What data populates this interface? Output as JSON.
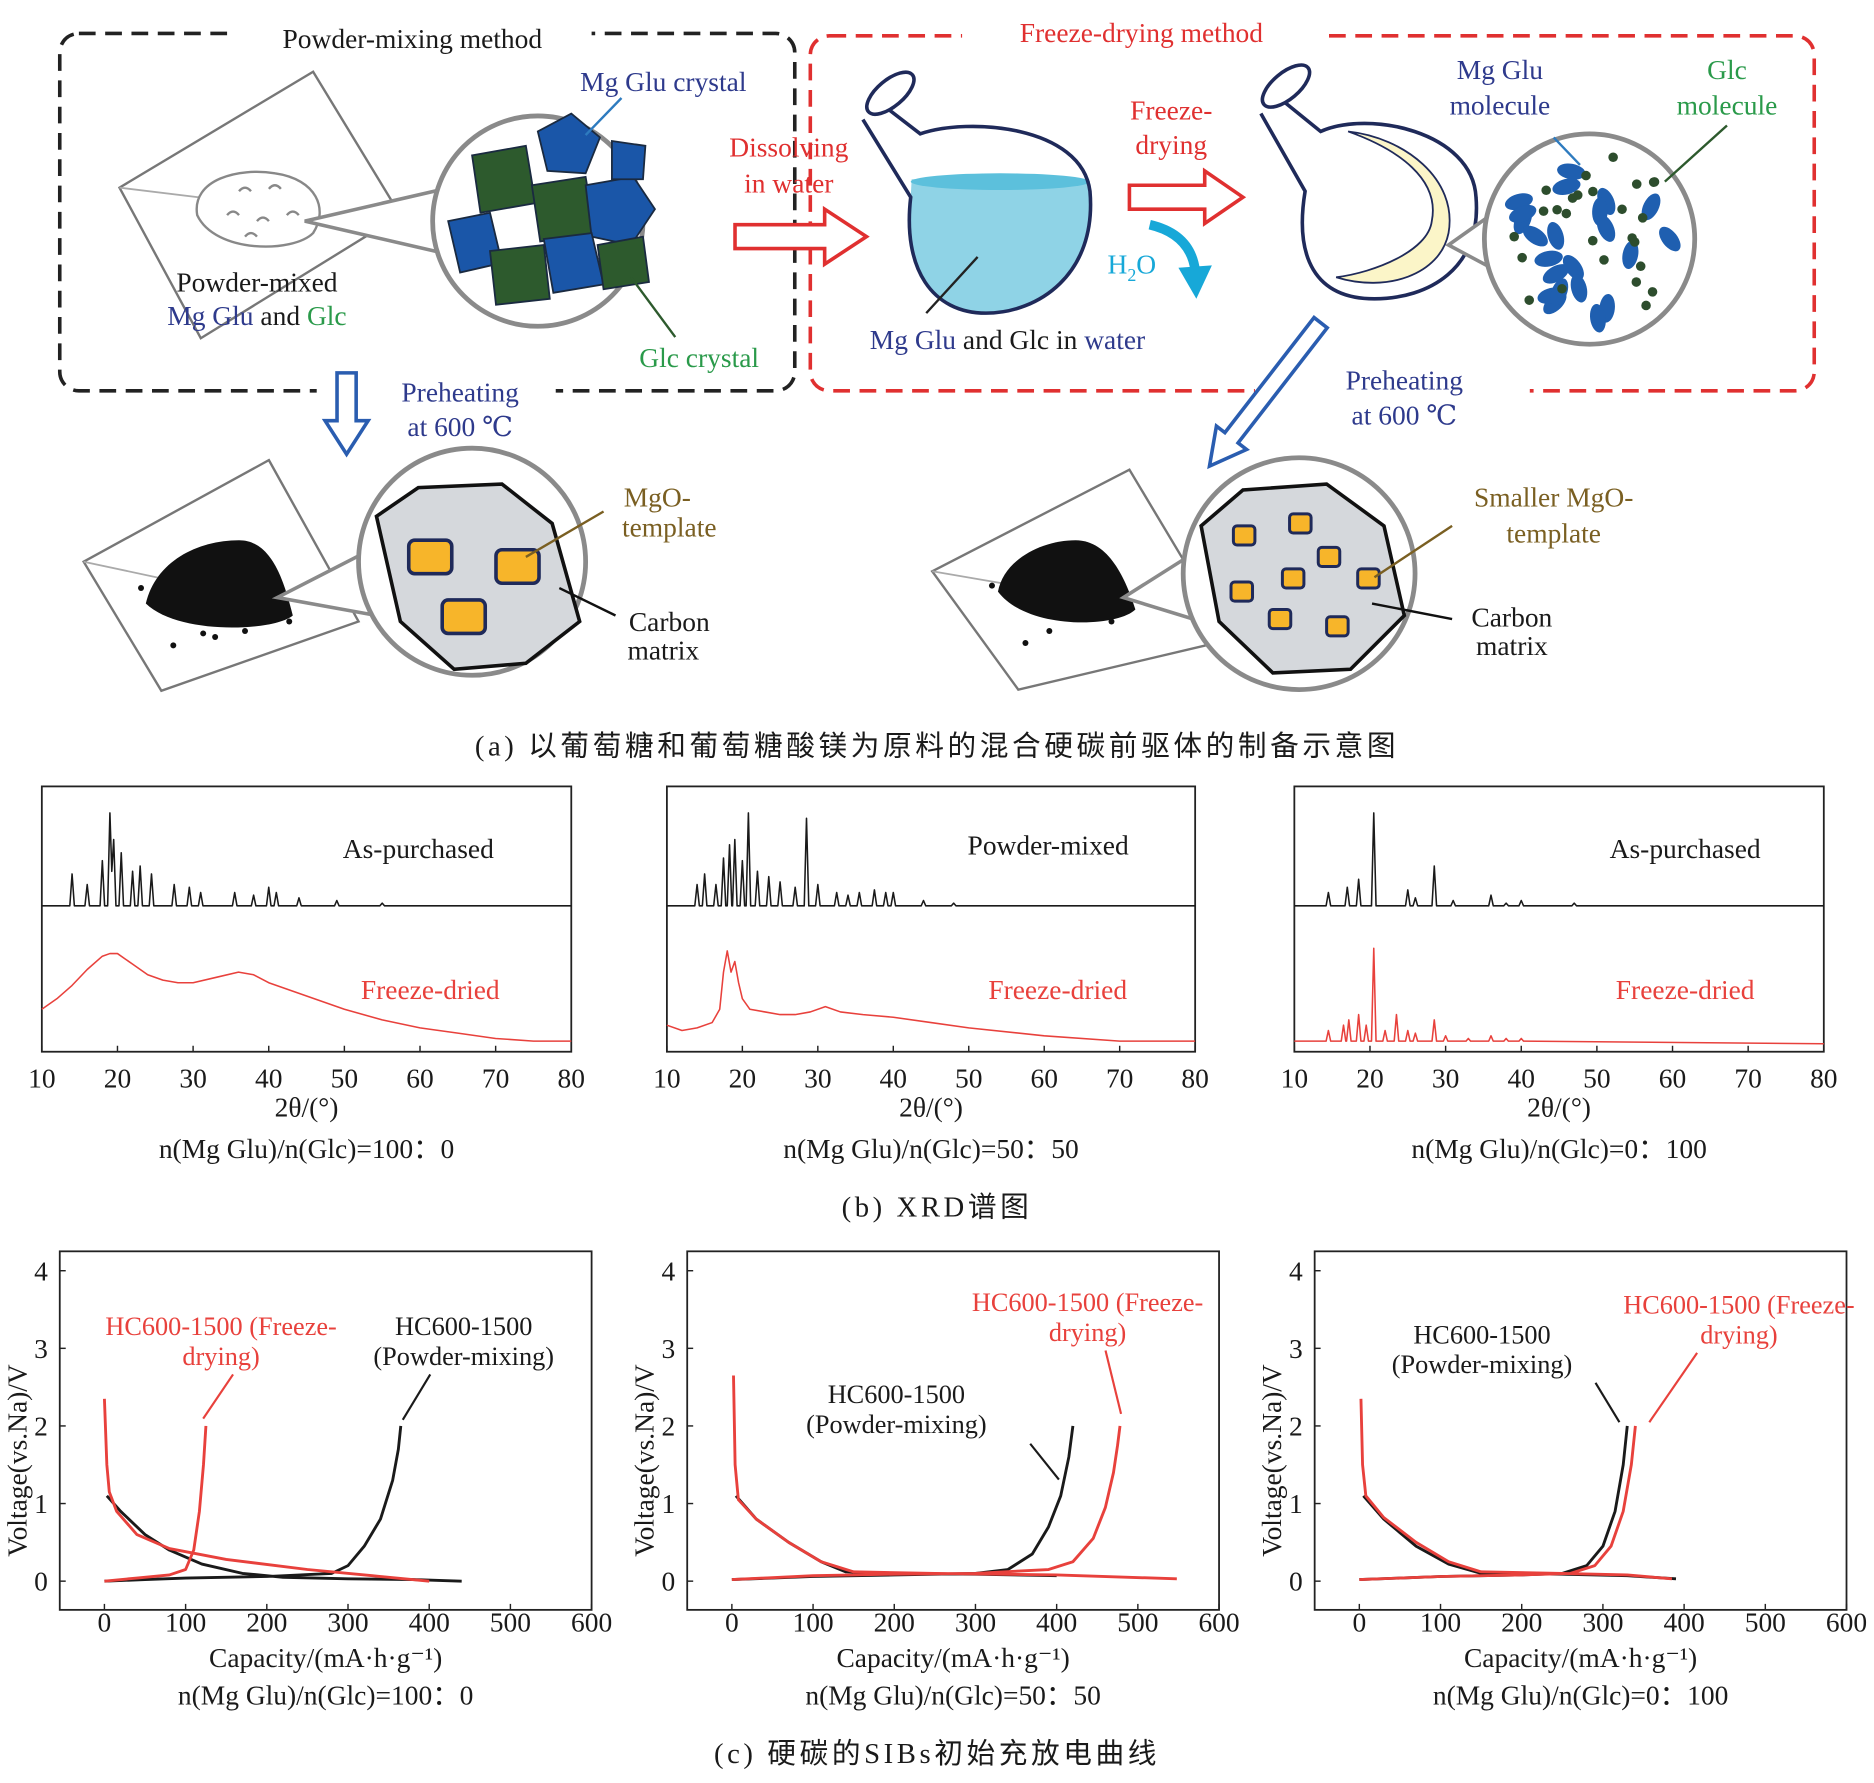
{
  "diagram": {
    "powder_title": "Powder-mixing method",
    "freeze_title": "Freeze-drying method",
    "mg_glu_crystal": "Mg Glu crystal",
    "glc_crystal": "Glc crystal",
    "powder_mixed": [
      "Powder-mixed",
      "Mg Glu",
      "and",
      "Glc"
    ],
    "dissolving": [
      "Dissolving",
      "in water"
    ],
    "solution": [
      "Mg Glu",
      "and Glc in",
      "water"
    ],
    "freeze_drying": [
      "Freeze-",
      "drying"
    ],
    "water": [
      "H",
      "2",
      "O"
    ],
    "mg_glu_molecule": [
      "Mg Glu",
      "molecule"
    ],
    "glc_molecule": [
      "Glc",
      "molecule"
    ],
    "preheating_left": [
      "Preheating",
      "at 600 ℃"
    ],
    "preheating_right": [
      "Preheating",
      "at 600 ℃"
    ],
    "mgo_template": [
      "MgO-",
      "template"
    ],
    "carbon_matrix_left": [
      "Carbon",
      "matrix"
    ],
    "smaller_mgo_template": [
      "Smaller MgO-",
      "template"
    ],
    "carbon_matrix_right": [
      "Carbon",
      "matrix"
    ]
  },
  "captions": {
    "a": "(a) 以葡萄糖和葡萄糖酸镁为原料的混合硬碳前驱体的制备示意图",
    "b": "(b) XRD谱图",
    "c": "(c) 硬碳的SIBs初始充放电曲线"
  },
  "chart_data": [
    {
      "type": "line",
      "subtitle": "n(Mg Glu)/n(Glc)=100：0",
      "xlabel": "2θ/(°)",
      "xlim": [
        10,
        80
      ],
      "xticks": [
        10,
        20,
        30,
        40,
        50,
        60,
        70,
        80
      ],
      "ylim": [
        0,
        100
      ],
      "series": [
        {
          "name": "As-purchased",
          "color": "#1a1a1a",
          "x": [
            10,
            13.7,
            14,
            14.3,
            15.7,
            16,
            16.3,
            17.7,
            18,
            18.3,
            18.7,
            19,
            19.25,
            19.5,
            19.8,
            20.2,
            20.5,
            20.8,
            21.7,
            22,
            22.3,
            22.7,
            23,
            23.3,
            24.2,
            24.5,
            24.8,
            27.2,
            27.5,
            27.8,
            29.2,
            29.5,
            29.8,
            30.7,
            31,
            31.3,
            35.2,
            35.5,
            35.8,
            37.7,
            38,
            38.3,
            39.7,
            40,
            40.3,
            40.7,
            41,
            41.3,
            43.7,
            44,
            44.3,
            48.7,
            49,
            49.3,
            54.7,
            55,
            55.3,
            80
          ],
          "values": [
            55,
            55,
            67,
            55,
            55,
            63,
            55,
            55,
            72,
            55,
            55,
            90,
            68,
            80,
            55,
            55,
            75,
            55,
            55,
            68,
            55,
            55,
            70,
            55,
            55,
            67,
            55,
            55,
            63,
            55,
            55,
            62,
            55,
            55,
            60,
            55,
            55,
            60,
            55,
            55,
            59,
            55,
            55,
            62,
            55,
            55,
            60,
            55,
            55,
            58,
            55,
            55,
            57,
            55,
            55,
            56,
            55,
            55
          ]
        },
        {
          "name": "Freeze-dried",
          "color": "#e8413c",
          "x": [
            10,
            12,
            14,
            16,
            18,
            19,
            20,
            21,
            22,
            24,
            26,
            28,
            30,
            33,
            36,
            38,
            40,
            45,
            50,
            55,
            60,
            65,
            70,
            75,
            80
          ],
          "values": [
            16,
            20,
            25,
            31,
            36,
            37,
            37,
            35,
            33,
            29,
            27,
            26,
            26,
            28,
            30,
            29,
            26,
            21,
            16,
            12,
            9,
            7,
            5,
            4,
            4
          ]
        }
      ]
    },
    {
      "type": "line",
      "subtitle": "n(Mg Glu)/n(Glc)=50：50",
      "xlabel": "2θ/(°)",
      "xlim": [
        10,
        80
      ],
      "xticks": [
        10,
        20,
        30,
        40,
        50,
        60,
        70,
        80
      ],
      "ylim": [
        0,
        100
      ],
      "series": [
        {
          "name": "Powder-mixed",
          "color": "#1a1a1a",
          "x": [
            10,
            13.7,
            14,
            14.3,
            14.7,
            15,
            15.3,
            16.2,
            16.5,
            16.8,
            17.2,
            17.5,
            17.8,
            18,
            18.3,
            18.6,
            18.7,
            19,
            19.3,
            19.7,
            20,
            20.3,
            20.5,
            20.8,
            21.1,
            21.7,
            22,
            22.3,
            23.2,
            23.5,
            23.8,
            24.7,
            25,
            25.3,
            26.7,
            27,
            27.3,
            28.2,
            28.5,
            28.8,
            29.7,
            30,
            30.3,
            32.2,
            32.5,
            32.8,
            33.7,
            34,
            34.3,
            35.2,
            35.5,
            35.8,
            37.2,
            37.5,
            37.8,
            38.7,
            39,
            39.3,
            39.7,
            40,
            40.3,
            43.7,
            44,
            44.3,
            47.7,
            48,
            48.3,
            80
          ],
          "values": [
            55,
            55,
            63,
            55,
            55,
            67,
            55,
            55,
            63,
            55,
            55,
            73,
            55,
            55,
            78,
            55,
            55,
            80,
            55,
            55,
            72,
            55,
            55,
            90,
            55,
            55,
            68,
            55,
            55,
            66,
            55,
            55,
            64,
            55,
            55,
            62,
            55,
            55,
            88,
            55,
            55,
            63,
            55,
            55,
            60,
            55,
            55,
            59,
            55,
            55,
            60,
            55,
            55,
            61,
            55,
            55,
            60,
            55,
            55,
            60,
            55,
            55,
            57,
            55,
            55,
            56,
            55,
            55
          ]
        },
        {
          "name": "Freeze-dried",
          "color": "#e8413c",
          "x": [
            10,
            12,
            14,
            16,
            17,
            17.5,
            18,
            18.5,
            19,
            19.5,
            20,
            21,
            23,
            25,
            27,
            29,
            31,
            33,
            36,
            40,
            45,
            50,
            60,
            70,
            80
          ],
          "values": [
            10,
            8,
            9,
            11,
            16,
            30,
            38,
            30,
            34,
            26,
            20,
            16,
            15,
            14,
            14,
            15,
            17,
            15,
            14,
            13,
            11,
            9,
            6,
            4,
            4
          ]
        }
      ]
    },
    {
      "type": "line",
      "subtitle": "n(Mg Glu)/n(Glc)=0：100",
      "xlabel": "2θ/(°)",
      "xlim": [
        10,
        80
      ],
      "xticks": [
        10,
        20,
        30,
        40,
        50,
        60,
        70,
        80
      ],
      "ylim": [
        0,
        100
      ],
      "series": [
        {
          "name": "As-purchased",
          "color": "#1a1a1a",
          "x": [
            10,
            14.2,
            14.5,
            14.8,
            16.7,
            17,
            17.3,
            18.2,
            18.5,
            18.8,
            20.2,
            20.5,
            20.8,
            24.7,
            25,
            25.3,
            25.7,
            26,
            26.3,
            28.2,
            28.5,
            28.8,
            30.7,
            31,
            31.3,
            35.7,
            36,
            36.3,
            37.7,
            38,
            38.3,
            39.7,
            40,
            40.3,
            46.7,
            47,
            47.3,
            80
          ],
          "values": [
            55,
            55,
            60,
            55,
            55,
            62,
            55,
            55,
            65,
            55,
            55,
            90,
            55,
            55,
            61,
            55,
            55,
            58,
            55,
            55,
            70,
            55,
            55,
            57,
            55,
            55,
            59,
            55,
            55,
            56,
            55,
            55,
            57,
            55,
            55,
            56,
            55,
            55
          ]
        },
        {
          "name": "Freeze-dried",
          "color": "#e8413c",
          "x": [
            10,
            14.2,
            14.5,
            14.8,
            16.2,
            16.5,
            16.8,
            16.9,
            17.2,
            17.5,
            18.2,
            18.5,
            18.8,
            19.2,
            19.5,
            19.8,
            20.2,
            20.5,
            20.8,
            21.7,
            22,
            22.3,
            23.2,
            23.5,
            23.8,
            24.7,
            25,
            25.3,
            25.7,
            26,
            26.3,
            28.2,
            28.5,
            28.8,
            29.7,
            30,
            30.3,
            32.7,
            33,
            33.3,
            35.7,
            36,
            36.3,
            37.7,
            38,
            38.3,
            39.7,
            40,
            40.3,
            80
          ],
          "values": [
            4,
            4,
            8,
            4,
            4,
            10,
            4,
            4,
            12,
            4,
            4,
            14,
            4,
            4,
            10,
            4,
            4,
            39,
            4,
            4,
            8,
            4,
            4,
            14,
            4,
            4,
            8,
            4,
            4,
            7,
            4,
            4,
            12,
            4,
            4,
            6,
            4,
            4,
            5,
            4,
            4,
            6,
            4,
            4,
            5,
            4,
            4,
            5,
            4,
            3
          ]
        }
      ]
    },
    {
      "type": "line",
      "subtitle": "n(Mg Glu)/n(Glc)=100：0",
      "xlabel": "Capacity/(mA·h·g⁻¹)",
      "ylabel": "Voltage(vs.Na)/V",
      "xlim": [
        -55,
        600
      ],
      "xticks": [
        0,
        100,
        200,
        300,
        400,
        500,
        600
      ],
      "ylim": [
        -0.37,
        4.25
      ],
      "yticks": [
        0,
        1,
        2,
        3,
        4
      ],
      "series": [
        {
          "name": "HC600-1500 (Powder-mixing)",
          "color": "#1a1a1a",
          "x": [
            3,
            20,
            50,
            80,
            120,
            170,
            220,
            300,
            380,
            440,
            null,
            0,
            50,
            100,
            200,
            280,
            300,
            320,
            340,
            355,
            362,
            365
          ],
          "values": [
            1.1,
            0.9,
            0.6,
            0.4,
            0.22,
            0.1,
            0.05,
            0.03,
            0.02,
            0,
            null,
            0,
            0.02,
            0.04,
            0.06,
            0.1,
            0.2,
            0.45,
            0.8,
            1.3,
            1.7,
            2.0
          ]
        },
        {
          "name": "HC600-1500 (Freeze-drying)",
          "color": "#e8413c",
          "x": [
            0,
            3,
            6,
            15,
            40,
            80,
            150,
            250,
            330,
            400,
            null,
            0,
            40,
            80,
            100,
            110,
            117,
            122,
            125
          ],
          "values": [
            2.35,
            1.5,
            1.15,
            0.9,
            0.6,
            0.42,
            0.28,
            0.15,
            0.07,
            0,
            null,
            0,
            0.04,
            0.08,
            0.15,
            0.4,
            0.9,
            1.5,
            2.0
          ]
        }
      ]
    },
    {
      "type": "line",
      "subtitle": "n(Mg Glu)/n(Glc)=50：50",
      "xlabel": "Capacity/(mA·h·g⁻¹)",
      "ylabel": "Voltage(vs.Na)/V",
      "xlim": [
        -55,
        600
      ],
      "xticks": [
        0,
        100,
        200,
        300,
        400,
        500,
        600
      ],
      "ylim": [
        -0.37,
        4.25
      ],
      "yticks": [
        0,
        1,
        2,
        3,
        4
      ],
      "series": [
        {
          "name": "HC600-1500 (Powder-mixing)",
          "color": "#1a1a1a",
          "x": [
            5,
            30,
            70,
            110,
            140,
            200,
            300,
            400,
            null,
            0,
            100,
            200,
            300,
            340,
            370,
            390,
            405,
            415,
            420
          ],
          "values": [
            1.1,
            0.8,
            0.5,
            0.25,
            0.12,
            0.1,
            0.09,
            0.07,
            null,
            0.02,
            0.06,
            0.08,
            0.1,
            0.15,
            0.35,
            0.7,
            1.1,
            1.6,
            2.0
          ]
        },
        {
          "name": "HC600-1500 (Freeze-drying)",
          "color": "#e8413c",
          "x": [
            2,
            4,
            8,
            30,
            70,
            110,
            150,
            250,
            400,
            548,
            null,
            0,
            100,
            200,
            300,
            390,
            420,
            445,
            460,
            470,
            475,
            478
          ],
          "values": [
            2.65,
            1.5,
            1.05,
            0.8,
            0.5,
            0.25,
            0.12,
            0.1,
            0.08,
            0.03,
            null,
            0.02,
            0.07,
            0.09,
            0.1,
            0.15,
            0.25,
            0.55,
            0.95,
            1.4,
            1.75,
            2.0
          ]
        }
      ]
    },
    {
      "type": "line",
      "subtitle": "n(Mg Glu)/n(Glc)=0：100",
      "xlabel": "Capacity/(mA·h·g⁻¹)",
      "ylabel": "Voltage(vs.Na)/V",
      "xlim": [
        -55,
        600
      ],
      "xticks": [
        0,
        100,
        200,
        300,
        400,
        500,
        600
      ],
      "ylim": [
        -0.37,
        4.25
      ],
      "yticks": [
        0,
        1,
        2,
        3,
        4
      ],
      "series": [
        {
          "name": "HC600-1500 (Powder-mixing)",
          "color": "#1a1a1a",
          "x": [
            5,
            30,
            70,
            110,
            150,
            250,
            330,
            390,
            null,
            0,
            100,
            200,
            250,
            280,
            300,
            315,
            325,
            330
          ],
          "values": [
            1.1,
            0.8,
            0.45,
            0.22,
            0.1,
            0.09,
            0.07,
            0.03,
            null,
            0.02,
            0.06,
            0.08,
            0.1,
            0.2,
            0.45,
            0.9,
            1.5,
            2.0
          ]
        },
        {
          "name": "HC600-1500 (Freeze-drying)",
          "color": "#e8413c",
          "x": [
            2,
            4,
            8,
            30,
            70,
            110,
            150,
            250,
            330,
            385,
            null,
            0,
            100,
            200,
            260,
            290,
            310,
            325,
            335,
            340
          ],
          "values": [
            2.35,
            1.5,
            1.1,
            0.82,
            0.5,
            0.25,
            0.12,
            0.1,
            0.08,
            0.03,
            null,
            0.02,
            0.06,
            0.08,
            0.1,
            0.2,
            0.45,
            0.9,
            1.5,
            2.0
          ]
        }
      ]
    }
  ]
}
